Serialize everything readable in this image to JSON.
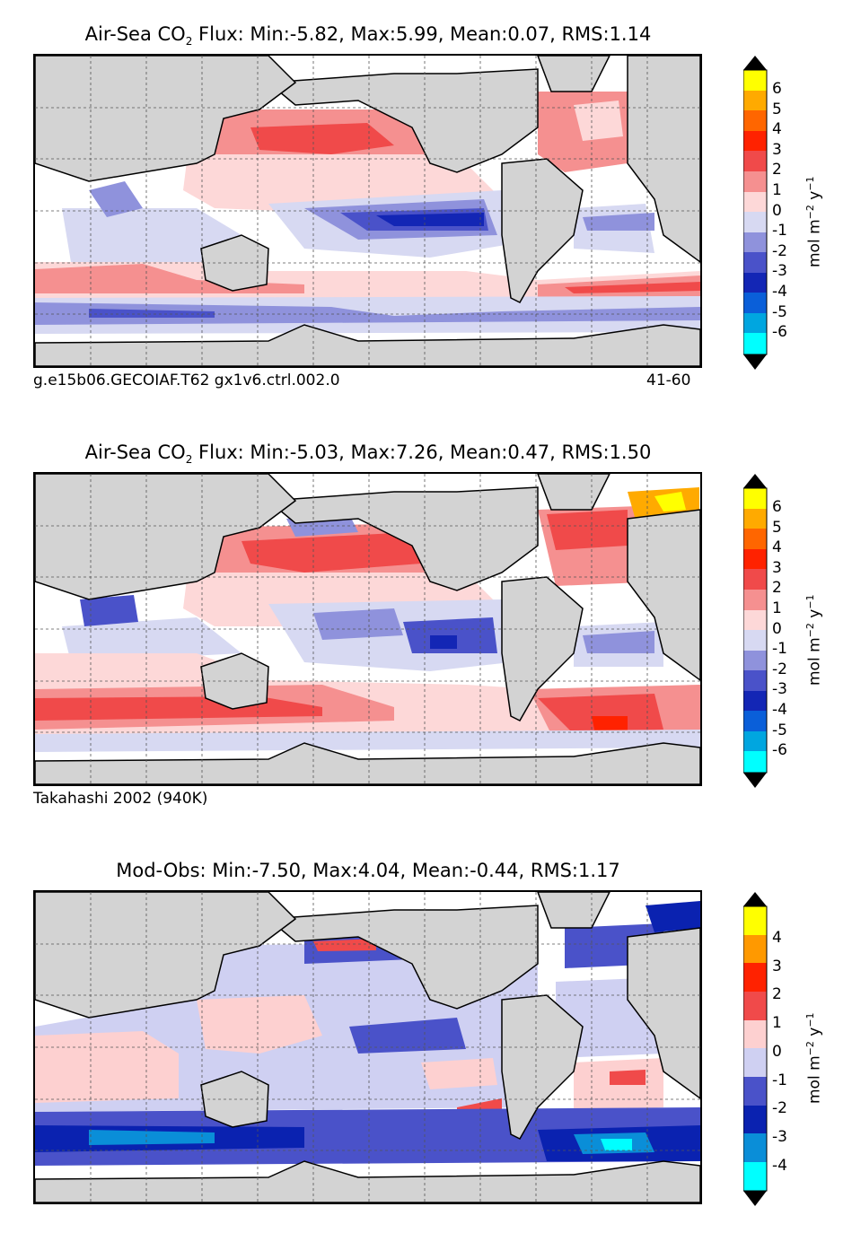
{
  "palette": {
    "land": "#d3d3d3",
    "coast": "#000000",
    "grid": "#555555"
  },
  "panels": [
    {
      "title_prefix": "Air-Sea CO",
      "title_sub": "2",
      "title_rest": " Flux: Min:-5.82, Max:5.99, Mean:0.07, RMS:1.14",
      "caption_left": "g.e15b06.GECOIAF.T62 gx1v6.ctrl.002.0",
      "caption_right": "41-60",
      "colorbar_label": "mol m",
      "colorbar_unit_exp1": "−2",
      "colorbar_unit_mid": " y",
      "colorbar_unit_exp2": "−1",
      "ticks": [
        "6",
        "5",
        "4",
        "3",
        "2",
        "1",
        "0",
        "-1",
        "-2",
        "-3",
        "-4",
        "-5",
        "-6"
      ],
      "colors": [
        "#ffff00",
        "#ffaa00",
        "#ff6600",
        "#ff2200",
        "#f04a4a",
        "#f59090",
        "#fdd8d8",
        "#d7d9f2",
        "#8f92dc",
        "#4a52c9",
        "#1326b5",
        "#0a5fd9",
        "#00a6e0",
        "#00ffff"
      ]
    },
    {
      "title_prefix": "Air-Sea CO",
      "title_sub": "2",
      "title_rest": " Flux: Min:-5.03, Max:7.26, Mean:0.47, RMS:1.50",
      "caption_left": "Takahashi 2002 (940K)",
      "caption_right": "",
      "colorbar_label": "mol m",
      "colorbar_unit_exp1": "−2",
      "colorbar_unit_mid": " y",
      "colorbar_unit_exp2": "−1",
      "ticks": [
        "6",
        "5",
        "4",
        "3",
        "2",
        "1",
        "0",
        "-1",
        "-2",
        "-3",
        "-4",
        "-5",
        "-6"
      ],
      "colors": [
        "#ffff00",
        "#ffaa00",
        "#ff6600",
        "#ff2200",
        "#f04a4a",
        "#f59090",
        "#fdd8d8",
        "#d7d9f2",
        "#8f92dc",
        "#4a52c9",
        "#1326b5",
        "#0a5fd9",
        "#00a6e0",
        "#00ffff"
      ]
    },
    {
      "title_prefix": "Mod-Obs: Min:-7.50, Max:4.04, Mean:-0.44, RMS:1.17",
      "title_sub": "",
      "title_rest": "",
      "caption_left": "",
      "caption_right": "",
      "colorbar_label": "mol m",
      "colorbar_unit_exp1": "−2",
      "colorbar_unit_mid": " y",
      "colorbar_unit_exp2": "−1",
      "ticks": [
        "4",
        "3",
        "2",
        "1",
        "0",
        "-1",
        "-2",
        "-3",
        "-4"
      ],
      "colors": [
        "#ffff00",
        "#ff9900",
        "#ff2200",
        "#f04a4a",
        "#fdd0d0",
        "#cfd0f2",
        "#4a52c9",
        "#0a22b0",
        "#0a8ed8",
        "#00ffff"
      ]
    }
  ]
}
